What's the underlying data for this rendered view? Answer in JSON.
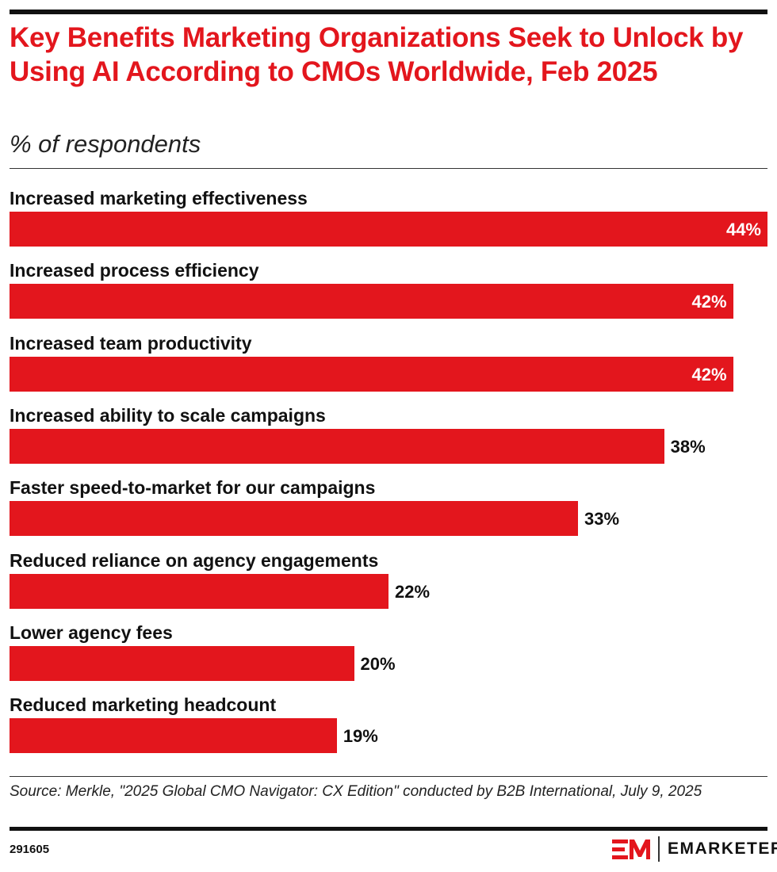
{
  "chart_data": {
    "type": "bar",
    "orientation": "horizontal",
    "title": "Key Benefits Marketing Organizations Seek to Unlock by Using AI According to CMOs Worldwide, Feb 2025",
    "subtitle": "% of respondents",
    "categories": [
      "Increased marketing effectiveness",
      "Increased process efficiency",
      "Increased team productivity",
      "Increased ability to scale campaigns",
      "Faster speed-to-market for our campaigns",
      "Reduced reliance on agency engagements",
      "Lower agency fees",
      "Reduced marketing headcount"
    ],
    "values": [
      44,
      42,
      42,
      38,
      33,
      22,
      20,
      19
    ],
    "value_labels": [
      "44%",
      "42%",
      "42%",
      "38%",
      "33%",
      "22%",
      "20%",
      "19%"
    ],
    "xlim": [
      0,
      44
    ],
    "grid": false,
    "bar_color": "#e3161d"
  },
  "source": "Source: Merkle, \"2025 Global CMO Navigator: CX Edition\" conducted by B2B International, July 9, 2025",
  "chart_id": "291605",
  "brand": {
    "logo_mark": "EM",
    "name": "EMARKETER",
    "color": "#e3161d"
  }
}
